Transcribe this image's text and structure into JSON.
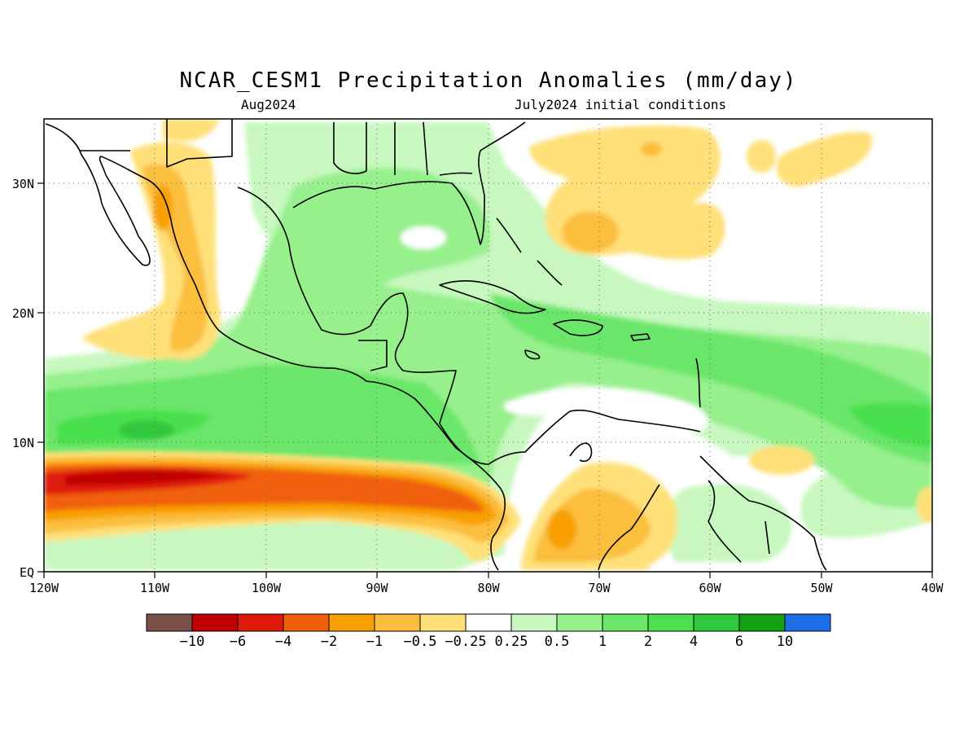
{
  "title": "NCAR_CESM1 Precipitation Anomalies (mm/day)",
  "subtitle_left": "Aug2024",
  "subtitle_right": "July2024 initial conditions",
  "map": {
    "lon_range": [
      -120,
      -40
    ],
    "lat_range": [
      0,
      35
    ],
    "lon_ticks": [
      "120W",
      "110W",
      "100W",
      "90W",
      "80W",
      "70W",
      "60W",
      "50W",
      "40W"
    ],
    "lat_ticks": [
      "EQ",
      "10N",
      "20N",
      "30N"
    ],
    "gridlines": "dotted"
  },
  "colors": {
    "lt-10": "#7a5048",
    "-10": "#c00000",
    "-6": "#e01a0a",
    "-4": "#f06008",
    "-2": "#f8a000",
    "-1": "#fbbe3c",
    "-0.5": "#ffe078",
    "neutral": "#ffffff",
    "0.25": "#c8f8c0",
    "0.5": "#96f08c",
    "1": "#6ae66a",
    "2": "#4ae04e",
    "4": "#30c83c",
    "6": "#14a014",
    "gt10": "#1e6ee6"
  },
  "colorbar": {
    "labels": [
      "−10",
      "−6",
      "−4",
      "−2",
      "−1",
      "−0.5",
      "−0.25",
      "0.25",
      "0.5",
      "1",
      "2",
      "4",
      "6",
      "10"
    ]
  }
}
